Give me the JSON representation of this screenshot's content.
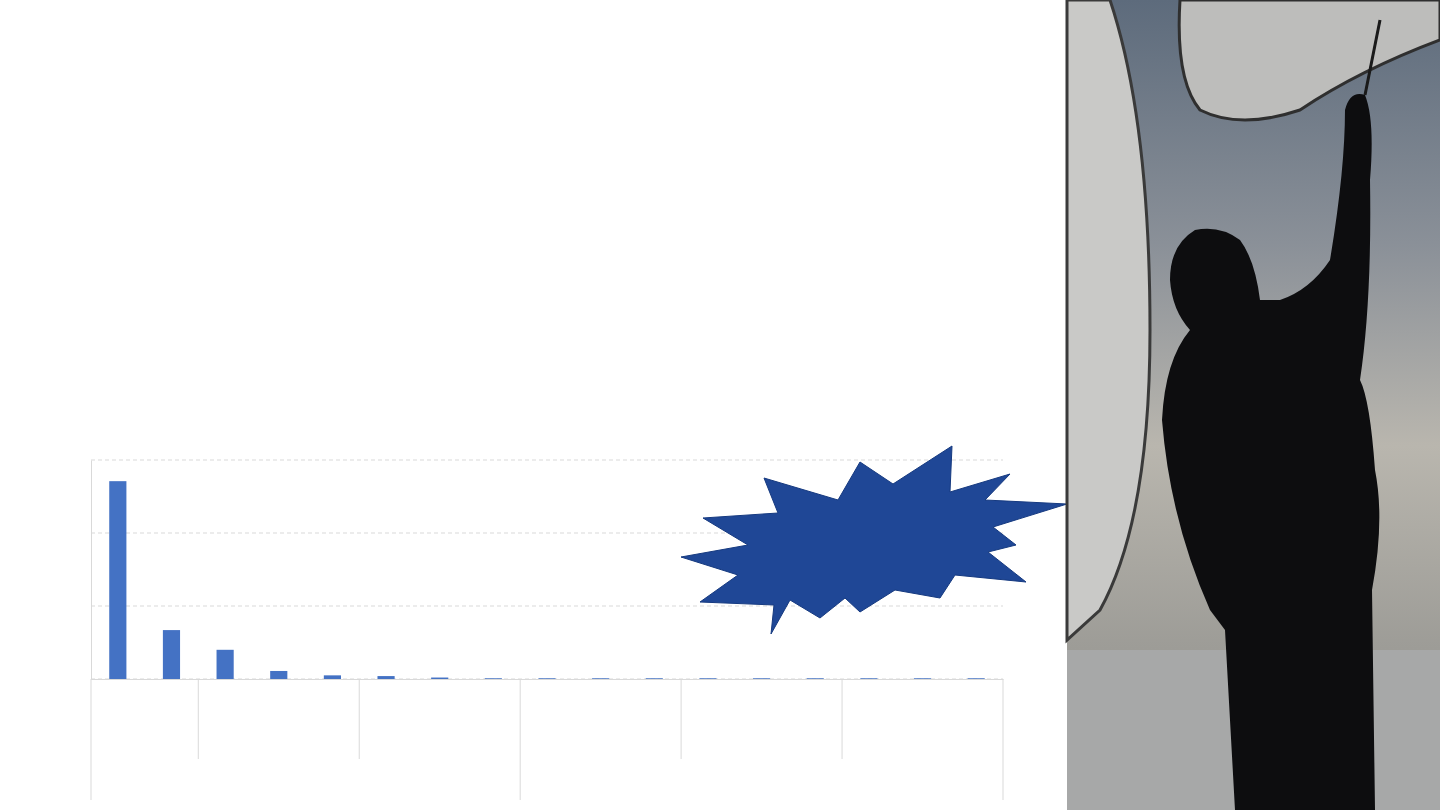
{
  "chart_data": {
    "type": "bar",
    "categories": [
      null,
      null,
      null,
      null,
      null,
      null,
      null,
      null,
      null,
      null,
      null,
      null,
      null,
      null,
      null,
      null,
      null
    ],
    "values": [
      2.71,
      0.67,
      0.4,
      0.11,
      0.05,
      0.04,
      0.02,
      0.01,
      0.01,
      0.01,
      0.01,
      0.01,
      0.01,
      0.01,
      0.01,
      0.01,
      0.01
    ],
    "color": "#4472c4",
    "ylim": [
      0,
      3
    ],
    "yticks": [
      0,
      1,
      2,
      3
    ],
    "grid": true,
    "tick_labels": false
  }
}
